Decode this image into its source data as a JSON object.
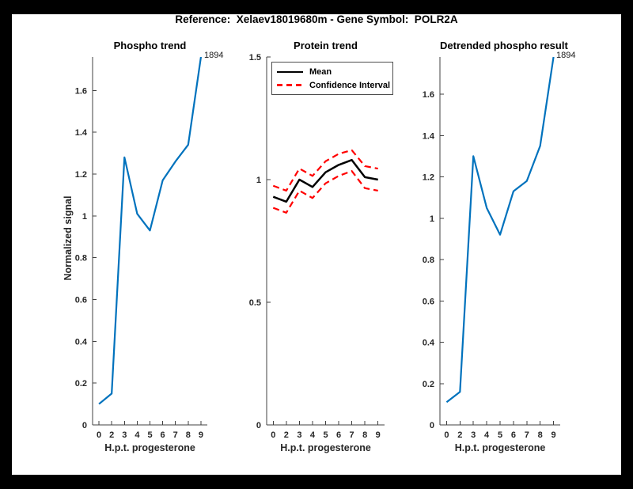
{
  "window": {
    "frame_color": "#000000",
    "canvas_color": "#ffffff"
  },
  "figure": {
    "title": "Reference:  Xelaev18019680m - Gene Symbol:  POLR2A"
  },
  "colors": {
    "blue": "#0072BD",
    "red": "#FF0000",
    "black": "#000000",
    "axis_line": "#404040",
    "tick_text": "#262626"
  },
  "chart_data": [
    {
      "type": "line",
      "name": "phospho-trend",
      "title": "Phospho trend",
      "xlabel": "H.p.t. progesterone",
      "ylabel": "Normalized signal",
      "x_tick_labels": [
        "0",
        "2",
        "3",
        "4",
        "5",
        "6",
        "7",
        "8",
        "9"
      ],
      "y_ticks": [
        0,
        0.2,
        0.4,
        0.6,
        0.8,
        1,
        1.2,
        1.4,
        1.6
      ],
      "y_tick_labels": [
        "0",
        "0.2",
        "0.4",
        "0.6",
        "0.8",
        "1",
        "1.2",
        "1.4",
        "1.6"
      ],
      "ylim": [
        0,
        1.76
      ],
      "grid": false,
      "annotation": "1894",
      "series": [
        {
          "name": "phospho-signal",
          "color_key": "blue",
          "style": "solid",
          "width": 2.2,
          "values": [
            0.1,
            0.15,
            1.28,
            1.01,
            0.93,
            1.17,
            1.26,
            1.34,
            1.76
          ]
        }
      ]
    },
    {
      "type": "line",
      "name": "protein-trend",
      "title": "Protein trend",
      "xlabel": "H.p.t. progesterone",
      "ylabel": "",
      "x_tick_labels": [
        "0",
        "2",
        "3",
        "4",
        "5",
        "6",
        "7",
        "8",
        "9"
      ],
      "y_ticks": [
        0,
        0.5,
        1,
        1.5
      ],
      "y_tick_labels": [
        "0",
        "0.5",
        "1",
        "1.5"
      ],
      "ylim": [
        0,
        1.5
      ],
      "grid": false,
      "legend_labels": [
        "Mean",
        "Confidence Interval"
      ],
      "legend_position": "top-left",
      "series": [
        {
          "name": "mean",
          "color_key": "black",
          "style": "solid",
          "width": 2.5,
          "values": [
            0.93,
            0.91,
            1.0,
            0.97,
            1.03,
            1.06,
            1.08,
            1.01,
            1.0
          ]
        },
        {
          "name": "ci-upper",
          "color_key": "red",
          "style": "dashed",
          "width": 2.2,
          "values": [
            0.975,
            0.955,
            1.045,
            1.015,
            1.075,
            1.105,
            1.12,
            1.055,
            1.045
          ]
        },
        {
          "name": "ci-lower",
          "color_key": "red",
          "style": "dashed",
          "width": 2.2,
          "values": [
            0.885,
            0.865,
            0.955,
            0.925,
            0.985,
            1.015,
            1.035,
            0.965,
            0.955
          ]
        }
      ]
    },
    {
      "type": "line",
      "name": "detrended-phospho",
      "title": "Detrended phospho result",
      "xlabel": "H.p.t. progesterone",
      "ylabel": "",
      "x_tick_labels": [
        "0",
        "2",
        "3",
        "4",
        "5",
        "6",
        "7",
        "8",
        "9"
      ],
      "y_ticks": [
        0,
        0.2,
        0.4,
        0.6,
        0.8,
        1,
        1.2,
        1.4,
        1.6
      ],
      "y_tick_labels": [
        "0",
        "0.2",
        "0.4",
        "0.6",
        "0.8",
        "1",
        "1.2",
        "1.4",
        "1.6"
      ],
      "ylim": [
        0,
        1.78
      ],
      "grid": false,
      "annotation": "1894",
      "series": [
        {
          "name": "detrended-signal",
          "color_key": "blue",
          "style": "solid",
          "width": 2.2,
          "values": [
            0.11,
            0.16,
            1.3,
            1.05,
            0.92,
            1.13,
            1.18,
            1.35,
            1.78
          ]
        }
      ]
    }
  ]
}
